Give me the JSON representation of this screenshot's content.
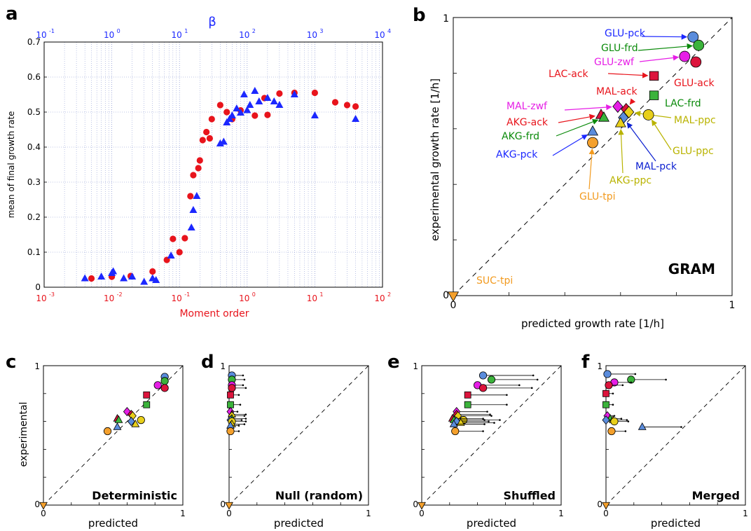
{
  "panel_letters": [
    "a",
    "b",
    "c",
    "d",
    "e",
    "f"
  ],
  "colors": {
    "red": "#e8141c",
    "blue": "#1c28ff",
    "darkblue": "#0b1fd0",
    "green": "#3bb33b",
    "green_text": "#0a8a0a",
    "magenta": "#e61ee6",
    "crimson": "#dc143c",
    "yellow": "#e8cf1a",
    "olive_text": "#b9b300",
    "orange": "#f4a02c",
    "orange_text": "#f29a1e",
    "steel": "#5a8cdc"
  },
  "chart_data": [
    {
      "panel": "a",
      "type": "scatter",
      "xlabel": "Moment order",
      "x2label": "β",
      "ylabel": "mean of final growth rate",
      "x_scale": "log",
      "xlim": [
        0.001,
        100
      ],
      "x2lim": [
        0.1,
        10000
      ],
      "ylim": [
        0,
        0.7
      ],
      "grid": true,
      "x_ticks": [
        "10",
        "10",
        "10",
        "10",
        "10",
        "10"
      ],
      "x_tick_exp": [
        "-3",
        "-2",
        "-1",
        "0",
        "1",
        "2"
      ],
      "x2_ticks": [
        "10",
        "10",
        "10",
        "10",
        "10",
        "10"
      ],
      "x2_tick_exp": [
        "-1",
        "0",
        "1",
        "2",
        "3",
        "4"
      ],
      "y_ticks": [
        "0",
        "0.1",
        "0.2",
        "0.3",
        "0.4",
        "0.5",
        "0.6",
        "0.7"
      ],
      "series": [
        {
          "marker": "circle",
          "color": "#e8141c",
          "x_axis": "Moment order",
          "points": [
            [
              0.005,
              0.025
            ],
            [
              0.01,
              0.03
            ],
            [
              0.019,
              0.032
            ],
            [
              0.04,
              0.045
            ],
            [
              0.065,
              0.078
            ],
            [
              0.08,
              0.138
            ],
            [
              0.1,
              0.1
            ],
            [
              0.12,
              0.14
            ],
            [
              0.145,
              0.26
            ],
            [
              0.16,
              0.32
            ],
            [
              0.19,
              0.34
            ],
            [
              0.2,
              0.362
            ],
            [
              0.22,
              0.42
            ],
            [
              0.25,
              0.443
            ],
            [
              0.28,
              0.425
            ],
            [
              0.3,
              0.48
            ],
            [
              0.4,
              0.52
            ],
            [
              0.5,
              0.5
            ],
            [
              0.6,
              0.48
            ],
            [
              0.8,
              0.505
            ],
            [
              1.3,
              0.49
            ],
            [
              1.8,
              0.54
            ],
            [
              2.0,
              0.492
            ],
            [
              3.0,
              0.553
            ],
            [
              5.0,
              0.555
            ],
            [
              10,
              0.555
            ],
            [
              20,
              0.528
            ],
            [
              30,
              0.52
            ],
            [
              40,
              0.516
            ]
          ]
        },
        {
          "marker": "triangle",
          "color": "#1c28ff",
          "x_axis": "β",
          "points": [
            [
              0.4,
              0.025
            ],
            [
              0.7,
              0.03
            ],
            [
              1.0,
              0.04
            ],
            [
              1.05,
              0.045
            ],
            [
              1.5,
              0.025
            ],
            [
              2.0,
              0.03
            ],
            [
              3.0,
              0.015
            ],
            [
              4.0,
              0.025
            ],
            [
              4.5,
              0.02
            ],
            [
              7.5,
              0.09
            ],
            [
              15,
              0.17
            ],
            [
              16,
              0.22
            ],
            [
              18,
              0.26
            ],
            [
              40,
              0.41
            ],
            [
              45,
              0.415
            ],
            [
              50,
              0.47
            ],
            [
              55,
              0.48
            ],
            [
              60,
              0.49
            ],
            [
              70,
              0.51
            ],
            [
              80,
              0.498
            ],
            [
              90,
              0.55
            ],
            [
              100,
              0.505
            ],
            [
              110,
              0.52
            ],
            [
              130,
              0.56
            ],
            [
              150,
              0.53
            ],
            [
              200,
              0.54
            ],
            [
              250,
              0.53
            ],
            [
              300,
              0.52
            ],
            [
              500,
              0.55
            ],
            [
              1000,
              0.49
            ],
            [
              4000,
              0.48
            ]
          ]
        }
      ]
    },
    {
      "panel": "b",
      "type": "scatter",
      "title": "GRAM",
      "xlabel": "predicted growth rate [1/h]",
      "ylabel": "experimental growth rate [1/h]",
      "xlim": [
        0,
        1
      ],
      "ylim": [
        0,
        1
      ],
      "x_tick_labels": [
        "0",
        "1"
      ],
      "y_tick_labels": [
        "0",
        "1"
      ],
      "diagonal": true,
      "points": [
        {
          "label": "GLU-pck",
          "x": 0.86,
          "y": 0.93,
          "marker": "circle",
          "color": "#5a8cdc",
          "text_color": "#1c28ff"
        },
        {
          "label": "GLU-frd",
          "x": 0.88,
          "y": 0.9,
          "marker": "circle",
          "color": "#3bb33b",
          "text_color": "#0a8a0a"
        },
        {
          "label": "GLU-zwf",
          "x": 0.83,
          "y": 0.86,
          "marker": "circle",
          "color": "#e61ee6",
          "text_color": "#e61ee6"
        },
        {
          "label": "GLU-ack",
          "x": 0.87,
          "y": 0.84,
          "marker": "circle",
          "color": "#dc143c",
          "text_color": "#e8141c"
        },
        {
          "label": "LAC-ack",
          "x": 0.72,
          "y": 0.79,
          "marker": "square",
          "color": "#dc143c",
          "text_color": "#e8141c"
        },
        {
          "label": "MAL-ack",
          "x": 0.62,
          "y": 0.67,
          "marker": "diamond",
          "color": "#dc143c",
          "text_color": "#e8141c"
        },
        {
          "label": "LAC-frd",
          "x": 0.72,
          "y": 0.72,
          "marker": "square",
          "color": "#3bb33b",
          "text_color": "#0a8a0a"
        },
        {
          "label": "MAL-zwf",
          "x": 0.59,
          "y": 0.68,
          "marker": "diamond",
          "color": "#e61ee6",
          "text_color": "#e61ee6"
        },
        {
          "label": "MAL-ppc",
          "x": 0.63,
          "y": 0.66,
          "marker": "diamond",
          "color": "#e8cf1a",
          "text_color": "#b9b300"
        },
        {
          "label": "GLU-ppc",
          "x": 0.7,
          "y": 0.65,
          "marker": "circle",
          "color": "#e8cf1a",
          "text_color": "#b9b300"
        },
        {
          "label": "AKG-ack",
          "x": 0.53,
          "y": 0.65,
          "marker": "triangle",
          "color": "#dc143c",
          "text_color": "#e8141c"
        },
        {
          "label": "AKG-frd",
          "x": 0.54,
          "y": 0.64,
          "marker": "triangle",
          "color": "#3bb33b",
          "text_color": "#0a8a0a"
        },
        {
          "label": "MAL-pck",
          "x": 0.61,
          "y": 0.64,
          "marker": "diamond",
          "color": "#5a8cdc",
          "text_color": "#0b1fd0"
        },
        {
          "label": "AKG-ppc",
          "x": 0.6,
          "y": 0.62,
          "marker": "triangle",
          "color": "#e8cf1a",
          "text_color": "#b9b300"
        },
        {
          "label": "AKG-pck",
          "x": 0.5,
          "y": 0.59,
          "marker": "triangle",
          "color": "#5a8cdc",
          "text_color": "#1c28ff"
        },
        {
          "label": "GLU-tpi",
          "x": 0.5,
          "y": 0.55,
          "marker": "circle",
          "color": "#f4a02c",
          "text_color": "#f29a1e"
        },
        {
          "label": "SUC-tpi",
          "x": 0.0,
          "y": 0.0,
          "marker": "triangle-down",
          "color": "#f4a02c",
          "text_color": "#f29a1e"
        }
      ]
    },
    {
      "panel": "c",
      "type": "scatter",
      "title": "Deterministic",
      "xlabel": "predicted",
      "ylabel": "experimental",
      "x_tick_labels": [
        "0",
        "1"
      ],
      "y_tick_labels": [
        "0",
        "1"
      ],
      "points": [
        {
          "x": 0.87,
          "y": 0.92,
          "color": "#5a8cdc",
          "marker": "circle"
        },
        {
          "x": 0.87,
          "y": 0.89,
          "color": "#3bb33b",
          "marker": "circle"
        },
        {
          "x": 0.82,
          "y": 0.86,
          "color": "#e61ee6",
          "marker": "circle"
        },
        {
          "x": 0.87,
          "y": 0.84,
          "color": "#dc143c",
          "marker": "circle"
        },
        {
          "x": 0.74,
          "y": 0.79,
          "color": "#dc143c",
          "marker": "square"
        },
        {
          "x": 0.74,
          "y": 0.72,
          "color": "#3bb33b",
          "marker": "square"
        },
        {
          "x": 0.6,
          "y": 0.67,
          "color": "#e61ee6",
          "marker": "diamond"
        },
        {
          "x": 0.63,
          "y": 0.65,
          "color": "#dc143c",
          "marker": "diamond"
        },
        {
          "x": 0.64,
          "y": 0.64,
          "color": "#e8cf1a",
          "marker": "diamond"
        },
        {
          "x": 0.7,
          "y": 0.61,
          "color": "#e8cf1a",
          "marker": "circle"
        },
        {
          "x": 0.53,
          "y": 0.62,
          "color": "#dc143c",
          "marker": "triangle"
        },
        {
          "x": 0.54,
          "y": 0.61,
          "color": "#3bb33b",
          "marker": "triangle"
        },
        {
          "x": 0.63,
          "y": 0.6,
          "color": "#5a8cdc",
          "marker": "diamond"
        },
        {
          "x": 0.66,
          "y": 0.58,
          "color": "#e8cf1a",
          "marker": "triangle"
        },
        {
          "x": 0.53,
          "y": 0.56,
          "color": "#5a8cdc",
          "marker": "triangle"
        },
        {
          "x": 0.46,
          "y": 0.53,
          "color": "#f4a02c",
          "marker": "circle"
        },
        {
          "x": 0.0,
          "y": 0.0,
          "color": "#f4a02c",
          "marker": "triangle-down"
        }
      ]
    },
    {
      "panel": "d",
      "type": "scatter",
      "title": "Null (random)",
      "xlabel": "predicted",
      "x_tick_labels": [
        "0",
        "1"
      ],
      "y_tick_labels": [
        "0",
        "1"
      ],
      "points": [
        {
          "x": 0.02,
          "y": 0.93,
          "xerr": 0.08,
          "color": "#5a8cdc",
          "marker": "circle"
        },
        {
          "x": 0.02,
          "y": 0.9,
          "xerr": 0.09,
          "color": "#3bb33b",
          "marker": "circle"
        },
        {
          "x": 0.02,
          "y": 0.86,
          "xerr": 0.08,
          "color": "#e61ee6",
          "marker": "circle"
        },
        {
          "x": 0.02,
          "y": 0.84,
          "xerr": 0.1,
          "color": "#dc143c",
          "marker": "circle"
        },
        {
          "x": 0.01,
          "y": 0.79,
          "xerr": 0.06,
          "color": "#dc143c",
          "marker": "square"
        },
        {
          "x": 0.01,
          "y": 0.72,
          "xerr": 0.07,
          "color": "#3bb33b",
          "marker": "square"
        },
        {
          "x": 0.01,
          "y": 0.67,
          "xerr": 0.05,
          "color": "#e61ee6",
          "marker": "diamond"
        },
        {
          "x": 0.02,
          "y": 0.65,
          "xerr": 0.1,
          "color": "#dc143c",
          "marker": "triangle"
        },
        {
          "x": 0.02,
          "y": 0.64,
          "xerr": 0.09,
          "color": "#e8cf1a",
          "marker": "diamond"
        },
        {
          "x": 0.02,
          "y": 0.62,
          "xerr": 0.1,
          "color": "#3bb33b",
          "marker": "triangle"
        },
        {
          "x": 0.01,
          "y": 0.61,
          "xerr": 0.08,
          "color": "#5a8cdc",
          "marker": "diamond"
        },
        {
          "x": 0.02,
          "y": 0.6,
          "xerr": 0.1,
          "color": "#e8cf1a",
          "marker": "circle"
        },
        {
          "x": 0.02,
          "y": 0.58,
          "xerr": 0.09,
          "color": "#e8cf1a",
          "marker": "triangle"
        },
        {
          "x": 0.01,
          "y": 0.57,
          "xerr": 0.06,
          "color": "#5a8cdc",
          "marker": "triangle"
        },
        {
          "x": 0.01,
          "y": 0.53,
          "xerr": 0.06,
          "color": "#f4a02c",
          "marker": "circle"
        },
        {
          "x": 0.0,
          "y": 0.0,
          "xerr": 0.0,
          "color": "#f4a02c",
          "marker": "triangle-down"
        }
      ]
    },
    {
      "panel": "e",
      "type": "scatter",
      "title": "Shuffled",
      "xlabel": "predicted",
      "x_tick_labels": [
        "0",
        "1"
      ],
      "y_tick_labels": [
        "0",
        "1"
      ],
      "points": [
        {
          "x": 0.44,
          "y": 0.93,
          "xerr": 0.36,
          "color": "#5a8cdc",
          "marker": "circle"
        },
        {
          "x": 0.5,
          "y": 0.9,
          "xerr": 0.33,
          "color": "#3bb33b",
          "marker": "circle"
        },
        {
          "x": 0.4,
          "y": 0.86,
          "xerr": 0.3,
          "color": "#e61ee6",
          "marker": "circle"
        },
        {
          "x": 0.44,
          "y": 0.84,
          "xerr": 0.35,
          "color": "#dc143c",
          "marker": "circle"
        },
        {
          "x": 0.33,
          "y": 0.79,
          "xerr": 0.28,
          "color": "#dc143c",
          "marker": "square"
        },
        {
          "x": 0.33,
          "y": 0.72,
          "xerr": 0.28,
          "color": "#3bb33b",
          "marker": "square"
        },
        {
          "x": 0.25,
          "y": 0.67,
          "xerr": 0.22,
          "color": "#e61ee6",
          "marker": "diamond"
        },
        {
          "x": 0.25,
          "y": 0.65,
          "xerr": 0.24,
          "color": "#dc143c",
          "marker": "diamond"
        },
        {
          "x": 0.26,
          "y": 0.64,
          "xerr": 0.24,
          "color": "#e8cf1a",
          "marker": "diamond"
        },
        {
          "x": 0.3,
          "y": 0.61,
          "xerr": 0.26,
          "color": "#e8cf1a",
          "marker": "circle"
        },
        {
          "x": 0.22,
          "y": 0.62,
          "xerr": 0.22,
          "color": "#dc143c",
          "marker": "triangle"
        },
        {
          "x": 0.23,
          "y": 0.61,
          "xerr": 0.22,
          "color": "#3bb33b",
          "marker": "triangle"
        },
        {
          "x": 0.25,
          "y": 0.6,
          "xerr": 0.23,
          "color": "#5a8cdc",
          "marker": "diamond"
        },
        {
          "x": 0.28,
          "y": 0.59,
          "xerr": 0.24,
          "color": "#e8cf1a",
          "marker": "triangle"
        },
        {
          "x": 0.23,
          "y": 0.58,
          "xerr": 0.22,
          "color": "#5a8cdc",
          "marker": "triangle"
        },
        {
          "x": 0.24,
          "y": 0.53,
          "xerr": 0.2,
          "color": "#f4a02c",
          "marker": "circle"
        },
        {
          "x": 0.0,
          "y": 0.0,
          "xerr": 0.0,
          "color": "#f4a02c",
          "marker": "triangle-down"
        }
      ]
    },
    {
      "panel": "f",
      "type": "scatter",
      "title": "Merged",
      "xlabel": "predicted",
      "x_tick_labels": [
        "0",
        "1"
      ],
      "y_tick_labels": [
        "0",
        "1"
      ],
      "points": [
        {
          "x": 0.01,
          "y": 0.94,
          "xerr": 0.2,
          "color": "#5a8cdc",
          "marker": "circle"
        },
        {
          "x": 0.18,
          "y": 0.9,
          "xerr": 0.25,
          "color": "#3bb33b",
          "marker": "circle"
        },
        {
          "x": 0.06,
          "y": 0.88,
          "xerr": 0.12,
          "color": "#e61ee6",
          "marker": "circle"
        },
        {
          "x": 0.02,
          "y": 0.86,
          "xerr": 0.1,
          "color": "#dc143c",
          "marker": "circle"
        },
        {
          "x": 0.0,
          "y": 0.8,
          "xerr": 0.05,
          "color": "#dc143c",
          "marker": "square"
        },
        {
          "x": 0.0,
          "y": 0.72,
          "xerr": 0.05,
          "color": "#3bb33b",
          "marker": "square"
        },
        {
          "x": 0.01,
          "y": 0.64,
          "xerr": 0.05,
          "color": "#e61ee6",
          "marker": "diamond"
        },
        {
          "x": 0.03,
          "y": 0.62,
          "xerr": 0.08,
          "color": "#3bb33b",
          "marker": "triangle"
        },
        {
          "x": 0.05,
          "y": 0.61,
          "xerr": 0.1,
          "color": "#e8cf1a",
          "marker": "triangle"
        },
        {
          "x": 0.0,
          "y": 0.61,
          "xerr": 0.04,
          "color": "#5a8cdc",
          "marker": "diamond"
        },
        {
          "x": 0.06,
          "y": 0.6,
          "xerr": 0.1,
          "color": "#e8cf1a",
          "marker": "circle"
        },
        {
          "x": 0.26,
          "y": 0.56,
          "xerr": 0.28,
          "color": "#5a8cdc",
          "marker": "triangle"
        },
        {
          "x": 0.04,
          "y": 0.53,
          "xerr": 0.1,
          "color": "#f4a02c",
          "marker": "circle"
        },
        {
          "x": 0.0,
          "y": 0.0,
          "xerr": 0.0,
          "color": "#f4a02c",
          "marker": "triangle-down"
        }
      ]
    }
  ]
}
